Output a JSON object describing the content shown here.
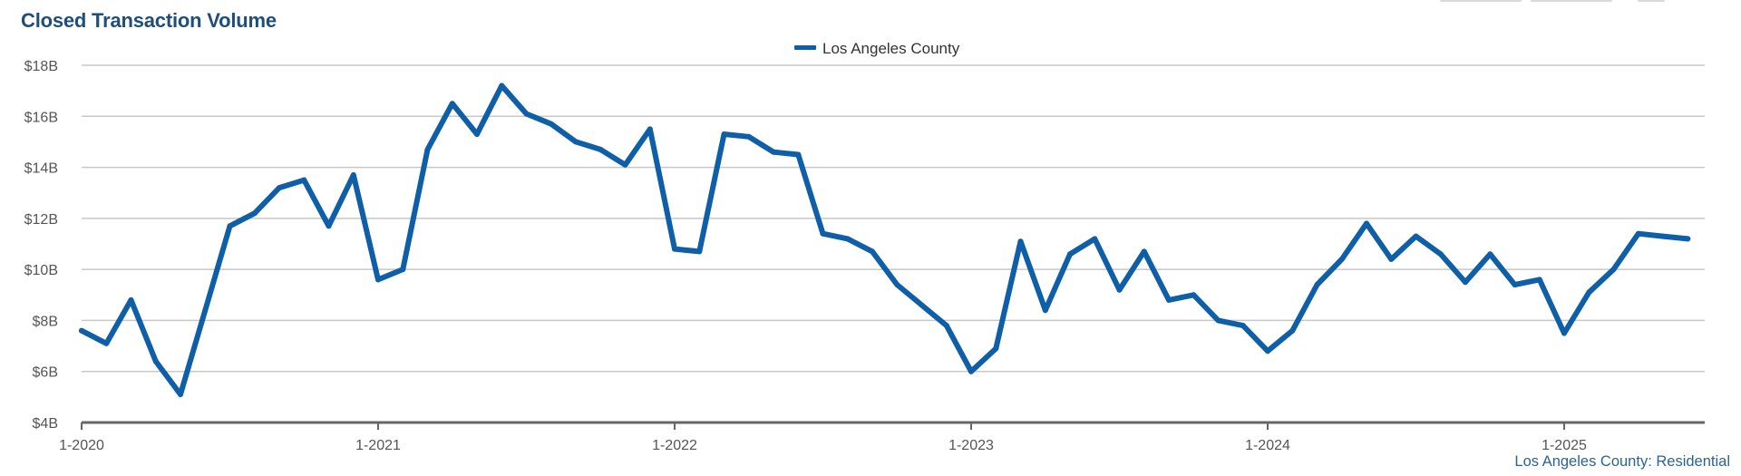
{
  "title": "Closed Transaction Volume",
  "footnote": "Los Angeles County: Residential",
  "chart_data": {
    "type": "line",
    "title": "Closed Transaction Volume",
    "xlabel": "",
    "ylabel": "",
    "x_start": "2020-01",
    "x_ticks": [
      "1-2020",
      "1-2021",
      "1-2022",
      "1-2023",
      "1-2024",
      "1-2025"
    ],
    "y_ticks": [
      "$4B",
      "$6B",
      "$8B",
      "$10B",
      "$12B",
      "$14B",
      "$16B",
      "$18B"
    ],
    "ylim": [
      4,
      18
    ],
    "y_unit": "$B",
    "grid": true,
    "legend_position": "top-center",
    "series": [
      {
        "name": "Los Angeles County",
        "color": "#0f5fa8",
        "values": [
          7.6,
          7.1,
          8.8,
          6.4,
          5.1,
          8.4,
          11.7,
          12.2,
          13.2,
          13.5,
          11.7,
          13.7,
          9.6,
          10.0,
          14.7,
          16.5,
          15.3,
          17.2,
          16.1,
          15.7,
          15.0,
          14.7,
          14.1,
          15.5,
          10.8,
          10.7,
          15.3,
          15.2,
          14.6,
          14.5,
          11.4,
          11.2,
          10.7,
          9.4,
          8.6,
          7.8,
          6.0,
          6.9,
          11.1,
          8.4,
          10.6,
          11.2,
          9.2,
          10.7,
          8.8,
          9.0,
          8.0,
          7.8,
          6.8,
          7.6,
          9.4,
          10.4,
          11.8,
          10.4,
          11.3,
          10.6,
          9.5,
          10.6,
          9.4,
          9.6,
          7.5,
          9.1,
          10.0,
          11.4,
          11.3,
          11.2
        ]
      }
    ]
  }
}
